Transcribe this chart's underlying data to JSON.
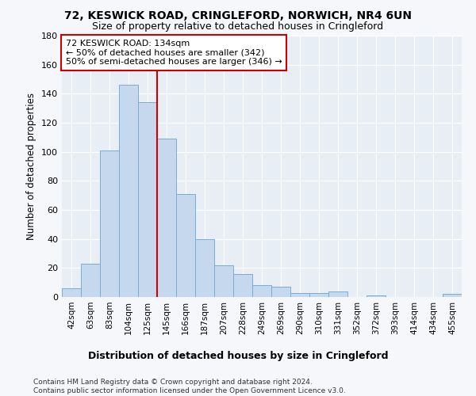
{
  "title": "72, KESWICK ROAD, CRINGLEFORD, NORWICH, NR4 6UN",
  "subtitle": "Size of property relative to detached houses in Cringleford",
  "xlabel": "Distribution of detached houses by size in Cringleford",
  "ylabel": "Number of detached properties",
  "bar_color": "#c5d8ed",
  "bar_edge_color": "#7aadd4",
  "background_color": "#e8eef6",
  "fig_background_color": "#f5f7fa",
  "categories": [
    "42sqm",
    "63sqm",
    "83sqm",
    "104sqm",
    "125sqm",
    "145sqm",
    "166sqm",
    "187sqm",
    "207sqm",
    "228sqm",
    "249sqm",
    "269sqm",
    "290sqm",
    "310sqm",
    "331sqm",
    "352sqm",
    "372sqm",
    "393sqm",
    "414sqm",
    "434sqm",
    "455sqm"
  ],
  "values": [
    6,
    23,
    101,
    146,
    134,
    109,
    71,
    40,
    22,
    16,
    8,
    7,
    3,
    3,
    4,
    0,
    1,
    0,
    0,
    0,
    2
  ],
  "ylim": [
    0,
    180
  ],
  "yticks": [
    0,
    20,
    40,
    60,
    80,
    100,
    120,
    140,
    160,
    180
  ],
  "property_label": "72 KESWICK ROAD: 134sqm",
  "annotation_line1": "← 50% of detached houses are smaller (342)",
  "annotation_line2": "50% of semi-detached houses are larger (346) →",
  "vline_x_index": 4.5,
  "annotation_box_color": "#ffffff",
  "annotation_box_edge_color": "#cc0000",
  "vline_color": "#cc0000",
  "footer_line1": "Contains HM Land Registry data © Crown copyright and database right 2024.",
  "footer_line2": "Contains public sector information licensed under the Open Government Licence v3.0."
}
